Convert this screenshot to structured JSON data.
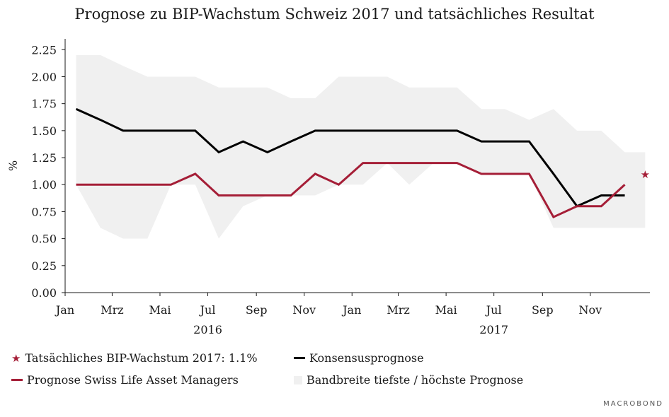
{
  "colors": {
    "band": "#f0f0f0",
    "consensus": "#000000",
    "swisslife": "#a51e37",
    "axis": "#1a1a1a"
  },
  "chart_data": {
    "type": "line",
    "title": "Prognose zu BIP-Wachstum Schweiz 2017 und tatsächliches Resultat",
    "ylabel": "%",
    "xlabel": "",
    "ylim": [
      0,
      2.35
    ],
    "grid": false,
    "yticks": [
      0.0,
      0.25,
      0.5,
      0.75,
      1.0,
      1.25,
      1.5,
      1.75,
      2.0,
      2.25
    ],
    "ytick_labels": [
      "0.00",
      "0.25",
      "0.50",
      "0.75",
      "1.00",
      "1.25",
      "1.50",
      "1.75",
      "2.00",
      "2.25"
    ],
    "xticks": [
      {
        "date": "2016-01",
        "label": "Jan"
      },
      {
        "date": "2016-03",
        "label": "Mrz"
      },
      {
        "date": "2016-05",
        "label": "Mai"
      },
      {
        "date": "2016-07",
        "label": "Jul"
      },
      {
        "date": "2016-09",
        "label": "Sep"
      },
      {
        "date": "2016-11",
        "label": "Nov"
      },
      {
        "date": "2017-01",
        "label": "Jan"
      },
      {
        "date": "2017-03",
        "label": "Mrz"
      },
      {
        "date": "2017-05",
        "label": "Mai"
      },
      {
        "date": "2017-07",
        "label": "Jul"
      },
      {
        "date": "2017-09",
        "label": "Sep"
      },
      {
        "date": "2017-11",
        "label": "Nov"
      }
    ],
    "year_labels": [
      {
        "date": "2016-07",
        "label": "2016"
      },
      {
        "date": "2017-07",
        "label": "2017"
      }
    ],
    "x": [
      "2016-01-15",
      "2016-02-15",
      "2016-03-15",
      "2016-04-15",
      "2016-05-15",
      "2016-06-15",
      "2016-07-15",
      "2016-08-15",
      "2016-09-15",
      "2016-10-15",
      "2016-11-15",
      "2016-12-15",
      "2017-01-15",
      "2017-02-15",
      "2017-03-15",
      "2017-04-15",
      "2017-05-15",
      "2017-06-15",
      "2017-07-15",
      "2017-08-15",
      "2017-09-15",
      "2017-10-15",
      "2017-11-15",
      "2017-12-15",
      "2018-01-10"
    ],
    "band": {
      "name": "Bandbreite tiefste / höchste Prognose",
      "low": [
        1.0,
        0.6,
        0.5,
        0.5,
        1.0,
        1.0,
        0.5,
        0.8,
        0.9,
        0.9,
        0.9,
        1.0,
        1.0,
        1.2,
        1.0,
        1.2,
        1.2,
        1.1,
        1.1,
        1.1,
        0.6,
        0.6,
        0.6,
        0.6,
        0.6
      ],
      "high": [
        2.2,
        2.2,
        2.1,
        2.0,
        2.0,
        2.0,
        1.9,
        1.9,
        1.9,
        1.8,
        1.8,
        2.0,
        2.0,
        2.0,
        1.9,
        1.9,
        1.9,
        1.7,
        1.7,
        1.6,
        1.7,
        1.5,
        1.5,
        1.3,
        1.3
      ]
    },
    "series": [
      {
        "name": "Konsensusprognose",
        "values": [
          1.7,
          1.6,
          1.5,
          1.5,
          1.5,
          1.5,
          1.3,
          1.4,
          1.3,
          1.4,
          1.5,
          1.5,
          1.5,
          1.5,
          1.5,
          1.5,
          1.5,
          1.4,
          1.4,
          1.4,
          1.1,
          0.8,
          0.9,
          0.9,
          null
        ]
      },
      {
        "name": "Prognose Swiss Life Asset Managers",
        "values": [
          1.0,
          1.0,
          1.0,
          1.0,
          1.0,
          1.1,
          0.9,
          0.9,
          0.9,
          0.9,
          1.1,
          1.0,
          1.2,
          1.2,
          1.2,
          1.2,
          1.2,
          1.1,
          1.1,
          1.1,
          0.7,
          0.8,
          0.8,
          1.0,
          null
        ]
      }
    ],
    "actual": {
      "name": "Tatsächliches BIP-Wachstum 2017: 1.1%",
      "date": "2018-01-10",
      "value": 1.1
    }
  },
  "legend": {
    "actual": "Tatsächliches BIP-Wachstum 2017: 1.1%",
    "consensus": "Konsensusprognose",
    "swisslife": "Prognose Swiss Life Asset Managers",
    "band": "Bandbreite tiefste / höchste Prognose"
  },
  "watermark": "MACROBOND"
}
